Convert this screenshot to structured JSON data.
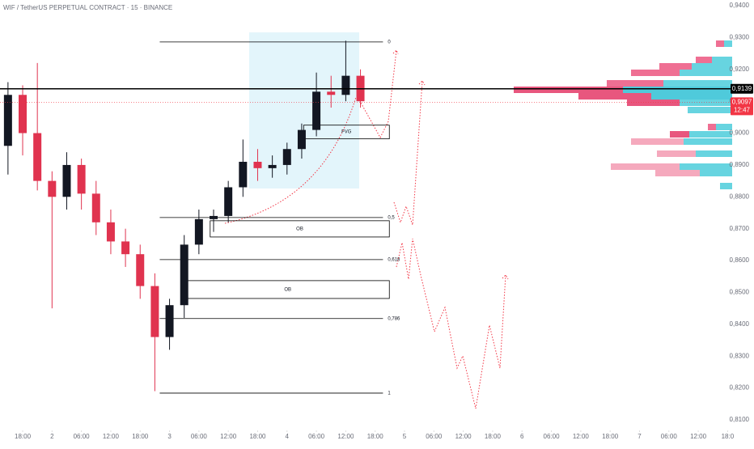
{
  "chart_data": {
    "type": "candlestick",
    "title": "WIF / TetherUS PERPETUAL CONTRACT · 15 · BINANCE",
    "up_color": "#131722",
    "down_color": "#e0334f",
    "candles": {
      "x": [
        -3,
        0,
        3,
        6,
        9,
        12,
        15,
        18,
        21,
        24,
        27,
        30,
        33,
        36,
        39,
        42,
        45,
        48,
        51,
        54,
        57,
        60,
        63,
        66,
        69
      ],
      "open": [
        0.896,
        0.912,
        0.9,
        0.885,
        0.88,
        0.89,
        0.881,
        0.872,
        0.866,
        0.862,
        0.852,
        0.836,
        0.846,
        0.865,
        0.873,
        0.874,
        0.883,
        0.891,
        0.889,
        0.89,
        0.895,
        0.901,
        0.913,
        0.912,
        0.918
      ],
      "high": [
        0.916,
        0.915,
        0.922,
        0.888,
        0.894,
        0.892,
        0.885,
        0.876,
        0.87,
        0.865,
        0.856,
        0.848,
        0.868,
        0.876,
        0.876,
        0.885,
        0.898,
        0.895,
        0.893,
        0.897,
        0.903,
        0.919,
        0.918,
        0.929,
        0.92
      ],
      "low": [
        0.887,
        0.893,
        0.882,
        0.845,
        0.876,
        0.876,
        0.868,
        0.862,
        0.858,
        0.848,
        0.819,
        0.832,
        0.842,
        0.862,
        0.869,
        0.872,
        0.88,
        0.885,
        0.886,
        0.887,
        0.892,
        0.899,
        0.908,
        0.91,
        0.908
      ],
      "close": [
        0.912,
        0.9,
        0.885,
        0.88,
        0.89,
        0.881,
        0.872,
        0.866,
        0.862,
        0.852,
        0.836,
        0.846,
        0.865,
        0.873,
        0.874,
        0.883,
        0.891,
        0.889,
        0.89,
        0.895,
        0.901,
        0.913,
        0.912,
        0.918,
        0.91
      ]
    },
    "xlim": [
      -4.63,
      144.1
    ],
    "xticks": [
      {
        "value": 0,
        "label": "18:00"
      },
      {
        "value": 6,
        "label": "2"
      },
      {
        "value": 12,
        "label": "06:00"
      },
      {
        "value": 18,
        "label": "12:00"
      },
      {
        "value": 24,
        "label": "18:00"
      },
      {
        "value": 30,
        "label": "3"
      },
      {
        "value": 36,
        "label": "06:00"
      },
      {
        "value": 42,
        "label": "12:00"
      },
      {
        "value": 48,
        "label": "18:00"
      },
      {
        "value": 54,
        "label": "4"
      },
      {
        "value": 60,
        "label": "06:00"
      },
      {
        "value": 66,
        "label": "12:00"
      },
      {
        "value": 72,
        "label": "18:00"
      },
      {
        "value": 78,
        "label": "5"
      },
      {
        "value": 84,
        "label": "06:00"
      },
      {
        "value": 90,
        "label": "12:00"
      },
      {
        "value": 96,
        "label": "18:00"
      },
      {
        "value": 102,
        "label": "6"
      },
      {
        "value": 108,
        "label": "06:00"
      },
      {
        "value": 114,
        "label": "12:00"
      },
      {
        "value": 120,
        "label": "18:00"
      },
      {
        "value": 126,
        "label": "7"
      },
      {
        "value": 132,
        "label": "06:00"
      },
      {
        "value": 138,
        "label": "12:00"
      },
      {
        "value": 144,
        "label": "18:0"
      }
    ],
    "ylim": [
      0.81,
      0.94
    ],
    "yticks": [
      {
        "value": 0.81,
        "label": "0,8100"
      },
      {
        "value": 0.82,
        "label": "0,8200"
      },
      {
        "value": 0.83,
        "label": "0,8300"
      },
      {
        "value": 0.84,
        "label": "0,8400"
      },
      {
        "value": 0.85,
        "label": "0,8500"
      },
      {
        "value": 0.86,
        "label": "0,8600"
      },
      {
        "value": 0.87,
        "label": "0,8700"
      },
      {
        "value": 0.88,
        "label": "0,8800"
      },
      {
        "value": 0.89,
        "label": "0,8900"
      },
      {
        "value": 0.9,
        "label": "0,9000"
      },
      {
        "value": 0.91,
        "label": "0,9100"
      },
      {
        "value": 0.92,
        "label": "0,9200"
      },
      {
        "value": 0.93,
        "label": "0,9300"
      },
      {
        "value": 0.94,
        "label": "0,9400"
      }
    ],
    "fib_x": [
      28,
      73.6
    ],
    "fib_levels": [
      {
        "label": "0",
        "price": 0.9286
      },
      {
        "label": "0,5",
        "price": 0.8735
      },
      {
        "label": "0,618",
        "price": 0.8603
      },
      {
        "label": "0,786",
        "price": 0.8418
      },
      {
        "label": "1",
        "price": 0.8184
      }
    ],
    "zones": [
      {
        "label": "FVG",
        "x": [
          57.4,
          74.9
        ],
        "y": [
          0.8982,
          0.9025
        ]
      },
      {
        "label": "OB",
        "x": [
          38.3,
          74.9
        ],
        "y": [
          0.8674,
          0.8725
        ]
      },
      {
        "label": "OB",
        "x": [
          33.4,
          74.9
        ],
        "y": [
          0.8481,
          0.8537
        ]
      }
    ],
    "price_lines": [
      {
        "value": 0.9139,
        "label": "0,9139",
        "color": "#000000"
      },
      {
        "value": 0.9097,
        "label": "0,9097",
        "countdown": "12:47",
        "color": "#f23645"
      }
    ]
  }
}
